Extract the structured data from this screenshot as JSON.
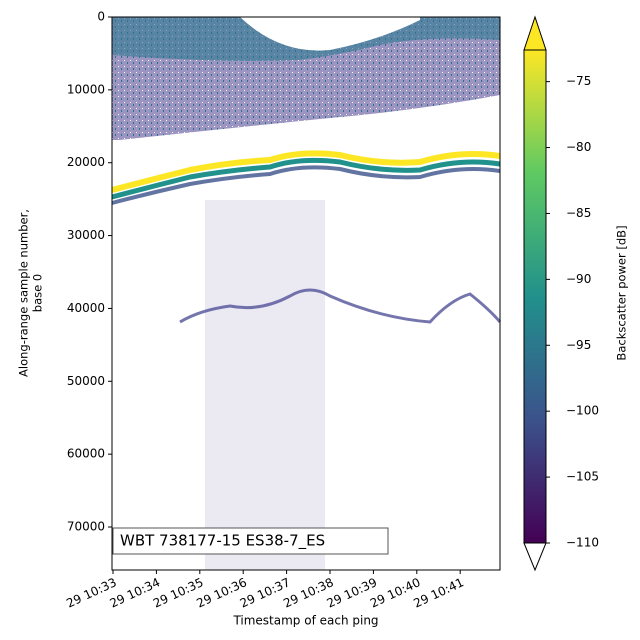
{
  "chart_data": {
    "type": "echogram",
    "ylabel": [
      "Along-range sample number,",
      "base 0"
    ],
    "xlabel": "Timestamp of each ping",
    "ylim": [
      75900,
      0
    ],
    "yticks": [
      0,
      10000,
      20000,
      30000,
      40000,
      50000,
      60000,
      70000
    ],
    "xticks": [
      "29 10:33",
      "29 10:34",
      "29 10:35",
      "29 10:36",
      "29 10:37",
      "29 10:38",
      "29 10:39",
      "29 10:40",
      "29 10:41"
    ],
    "annotation": "WBT 738177-15 ES38-7_ES",
    "colorbar": {
      "label": "Backscatter power [dB]",
      "clim": [
        -110,
        -72.6
      ],
      "ticks": [
        {
          "value": -75,
          "label": "−75"
        },
        {
          "value": -80,
          "label": "−80"
        },
        {
          "value": -85,
          "label": "−85"
        },
        {
          "value": -90,
          "label": "−90"
        },
        {
          "value": -95,
          "label": "−95"
        },
        {
          "value": -100,
          "label": "−100"
        },
        {
          "value": -105,
          "label": "−105"
        },
        {
          "value": -110,
          "label": "−110"
        }
      ],
      "colors": [
        "#440154",
        "#3b528b",
        "#21918c",
        "#5ec962",
        "#fde725"
      ],
      "under_color": "#ffffff"
    }
  }
}
